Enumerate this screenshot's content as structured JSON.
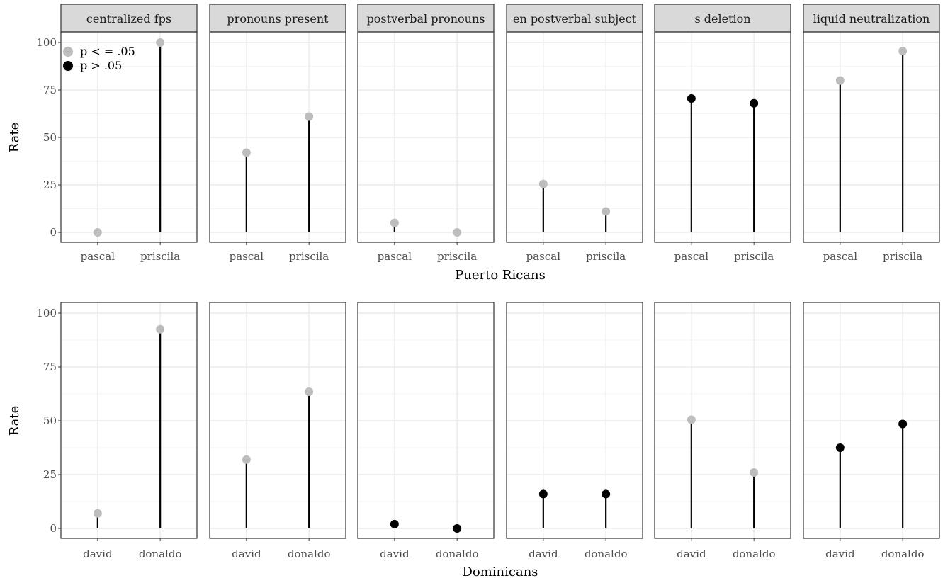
{
  "colors": {
    "sig": "#bdbdbd",
    "nonsig": "#000000",
    "strip_fill": "#d9d9d9",
    "grid_major": "#ebebeb",
    "grid_minor": "#f5f5f5",
    "frame": "#333333"
  },
  "legend": {
    "position": "top-left",
    "entries": [
      {
        "label": "p < = .05",
        "key": "sig"
      },
      {
        "label": "p > .05",
        "key": "nonsig"
      }
    ]
  },
  "chart_data": [
    {
      "type": "lollipop",
      "xlabel": "Puerto Ricans",
      "ylabel": "Rate",
      "ylim": [
        0,
        100
      ],
      "yticks": [
        0,
        25,
        50,
        75,
        100
      ],
      "grid": true,
      "categories": [
        "pascal",
        "priscila"
      ],
      "facets": [
        {
          "label": "centralized fps",
          "values": [
            0,
            100
          ],
          "sig": [
            "sig",
            "sig"
          ]
        },
        {
          "label": "pronouns present",
          "values": [
            42,
            61
          ],
          "sig": [
            "sig",
            "sig"
          ]
        },
        {
          "label": "postverbal pronouns",
          "values": [
            5,
            0
          ],
          "sig": [
            "sig",
            "sig"
          ]
        },
        {
          "label": "en postverbal subject",
          "values": [
            25.5,
            11
          ],
          "sig": [
            "sig",
            "sig"
          ]
        },
        {
          "label": "s deletion",
          "values": [
            70.5,
            68
          ],
          "sig": [
            "nonsig",
            "nonsig"
          ]
        },
        {
          "label": "liquid neutralization",
          "values": [
            80,
            95.5
          ],
          "sig": [
            "sig",
            "sig"
          ]
        }
      ]
    },
    {
      "type": "lollipop",
      "xlabel": "Dominicans",
      "ylabel": "Rate",
      "ylim": [
        0,
        100
      ],
      "yticks": [
        0,
        25,
        50,
        75,
        100
      ],
      "grid": true,
      "categories": [
        "david",
        "donaldo"
      ],
      "facets": [
        {
          "label": "",
          "values": [
            7,
            92.5
          ],
          "sig": [
            "sig",
            "sig"
          ]
        },
        {
          "label": "",
          "values": [
            32,
            63.5
          ],
          "sig": [
            "sig",
            "sig"
          ]
        },
        {
          "label": "",
          "values": [
            2,
            0
          ],
          "sig": [
            "nonsig",
            "nonsig"
          ]
        },
        {
          "label": "",
          "values": [
            16,
            16
          ],
          "sig": [
            "nonsig",
            "nonsig"
          ]
        },
        {
          "label": "",
          "values": [
            50.5,
            26
          ],
          "sig": [
            "sig",
            "sig"
          ]
        },
        {
          "label": "",
          "values": [
            37.5,
            48.5
          ],
          "sig": [
            "nonsig",
            "nonsig"
          ]
        }
      ]
    }
  ]
}
